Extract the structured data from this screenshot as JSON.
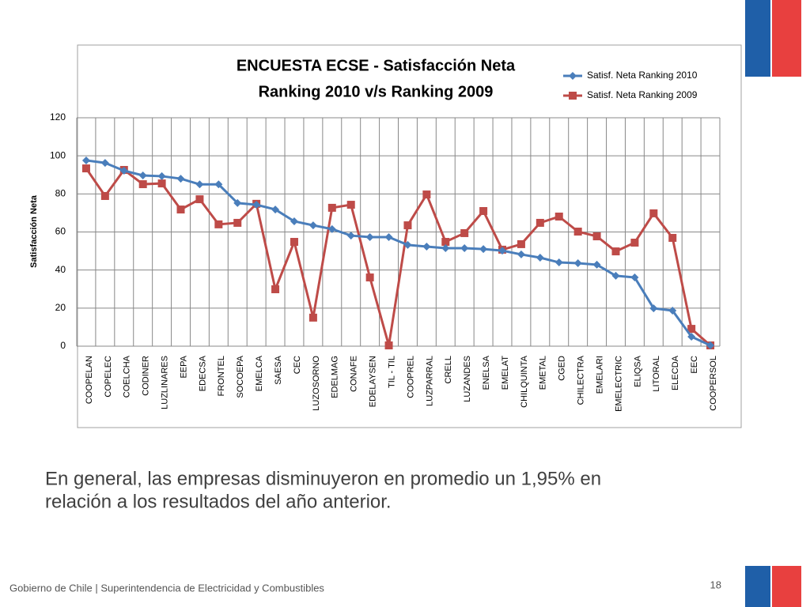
{
  "chart_data": {
    "type": "line",
    "title": [
      "ENCUESTA ECSE - Satisfacción Neta",
      "Ranking 2010 v/s Ranking 2009"
    ],
    "y_label": "Satisfacción Neta",
    "categories": [
      "COOPELAN",
      "COPELEC",
      "COELCHA",
      "CODINER",
      "LUZLINARES",
      "EEPA",
      "EDECSA",
      "FRONTEL",
      "SOCOEPA",
      "EMELCA",
      "SAESA",
      "CEC",
      "LUZOSORNO",
      "EDELMAG",
      "CONAFE",
      "EDELAYSEN",
      "TIL - TIL",
      "COOPREL",
      "LUZPARRAL",
      "CRELL",
      "LUZANDES",
      "ENELSA",
      "EMELAT",
      "CHILQUINTA",
      "EMETAL",
      "CGED",
      "CHILECTRA",
      "EMELARI",
      "EMELECTRIC",
      "ELIQSA",
      "LITORAL",
      "ELECDA",
      "EEC",
      "COOPERSOL"
    ],
    "series": [
      {
        "name": "Satisf. Neta Ranking 2010",
        "color": "#4a7ebb",
        "marker": "diamond",
        "values": [
          97.6,
          96.3,
          92.2,
          89.7,
          89.3,
          88,
          85,
          85,
          75.2,
          74.3,
          71.8,
          65.6,
          63.5,
          61.5,
          58.1,
          57.3,
          57.3,
          53.2,
          52.3,
          51.5,
          51.5,
          51,
          50.2,
          48.2,
          46.5,
          44,
          43.6,
          42.8,
          37,
          36.1,
          19.9,
          18.7,
          5,
          0.4
        ]
      },
      {
        "name": "Satisf. Neta Ranking 2009",
        "color": "#be4b48",
        "marker": "square",
        "values": [
          93.4,
          78.9,
          92.6,
          85.1,
          85.5,
          71.8,
          77.2,
          64,
          64.8,
          74.8,
          29.9,
          54.8,
          15,
          72.7,
          74.3,
          36.1,
          0.4,
          63.5,
          79.7,
          54.8,
          59.4,
          71,
          50.7,
          53.6,
          64.8,
          68.1,
          60.2,
          57.7,
          49.8,
          54.4,
          69.8,
          56.9,
          9.1,
          0.4
        ]
      }
    ],
    "ylim": [
      0,
      120
    ],
    "yticks": [
      0,
      20,
      40,
      60,
      80,
      100,
      120
    ],
    "grid": true,
    "legend": "top-right"
  },
  "slide": {
    "caption": [
      "En general, las empresas disminuyeron en promedio un 1,95% en",
      "relación a los resultados del año anterior."
    ],
    "footer": "Gobierno de Chile | Superintendencia de Electricidad y Combustibles",
    "page_number": "18"
  }
}
